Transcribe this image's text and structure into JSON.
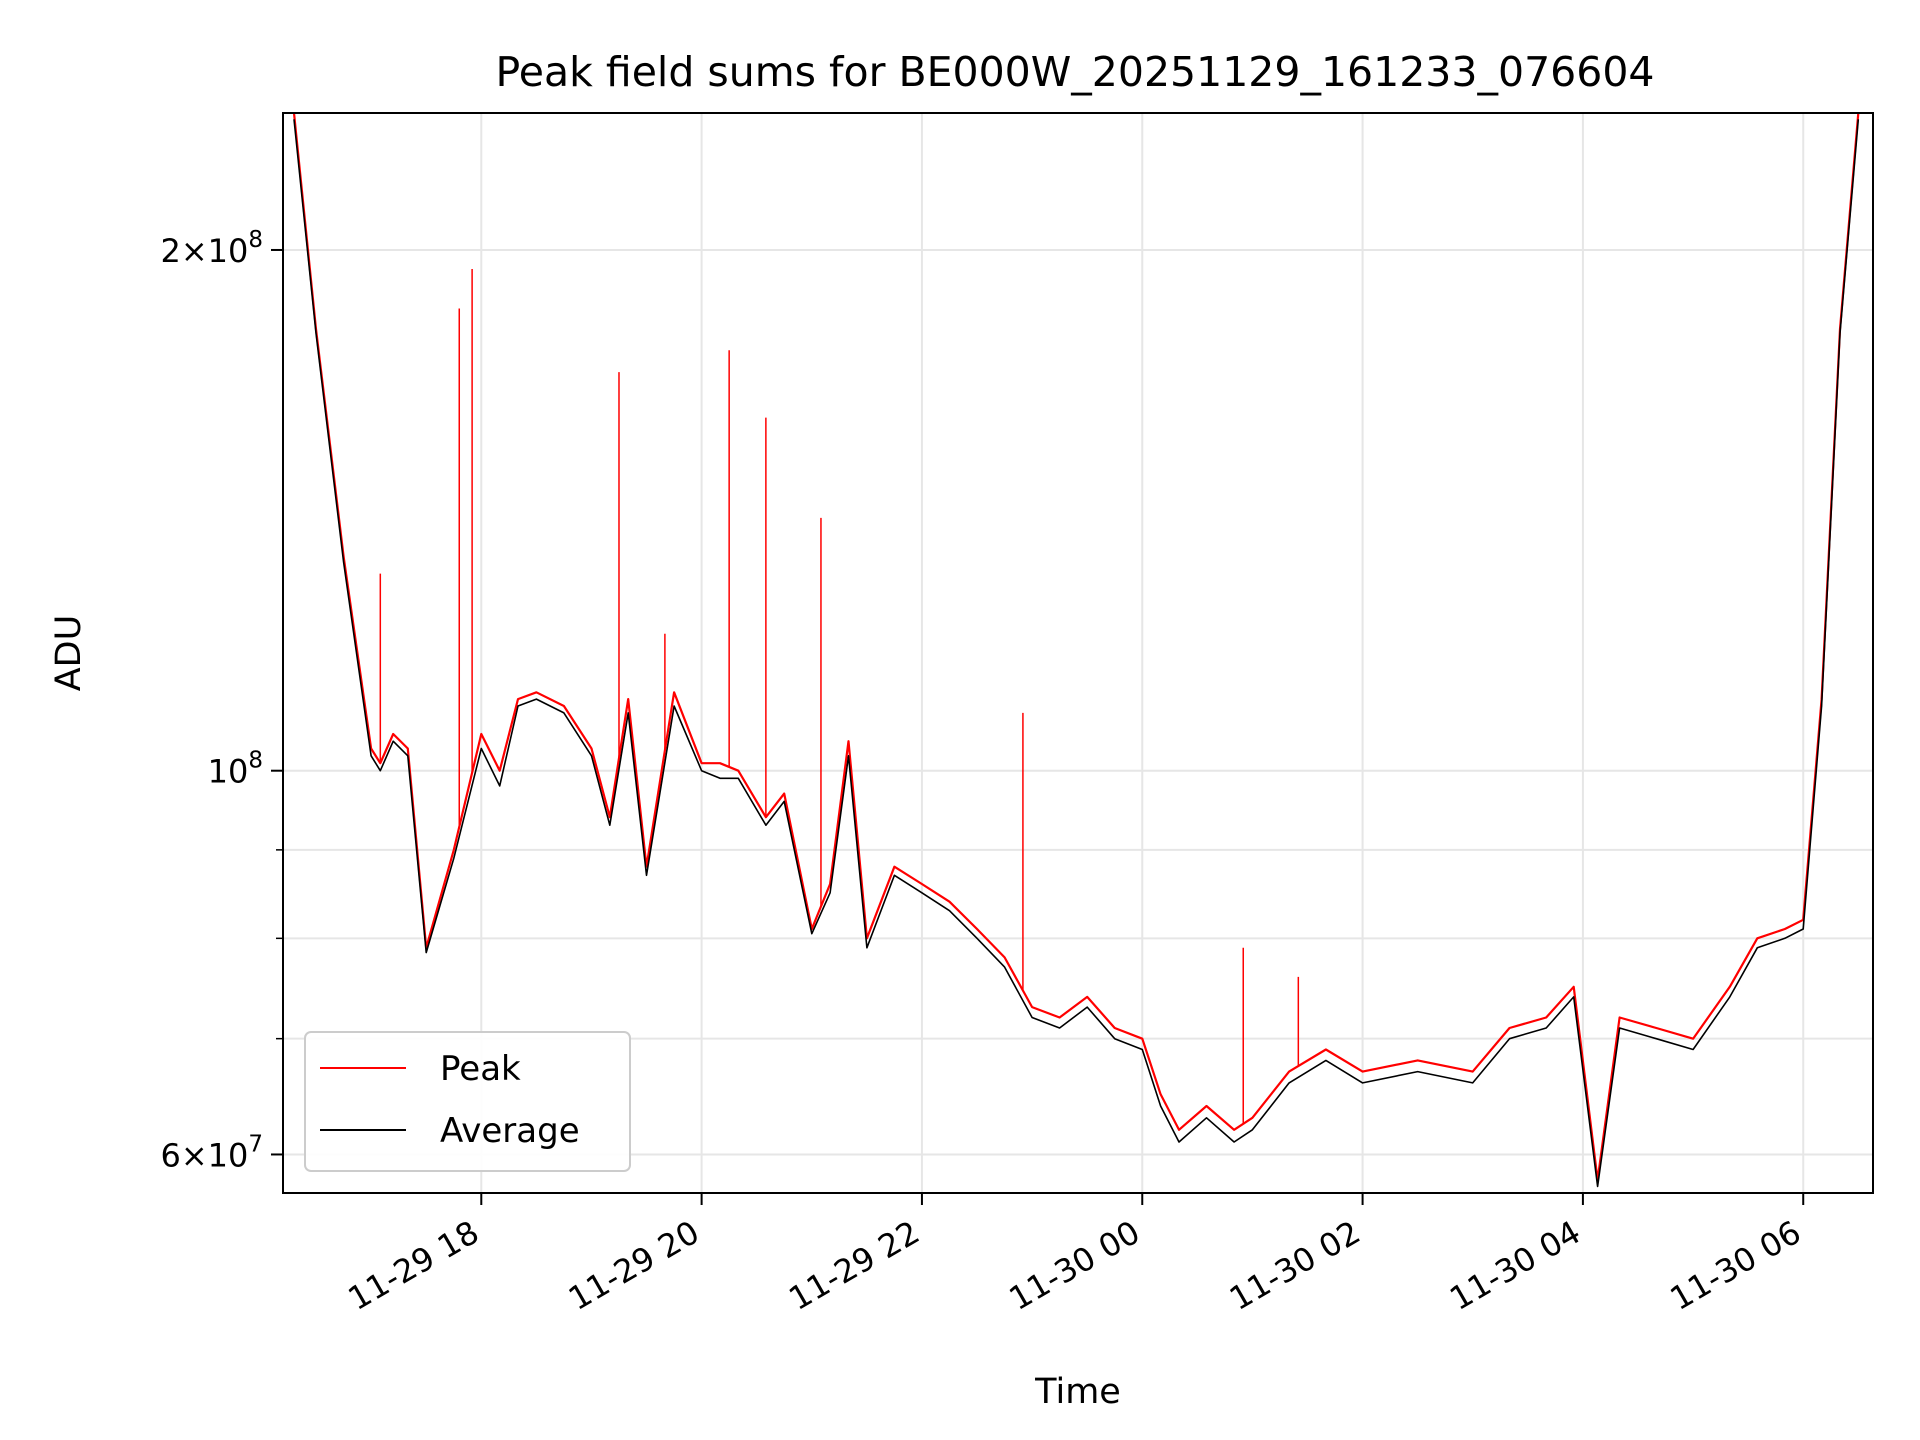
{
  "chart_data": {
    "type": "line",
    "title": "Peak field sums for BE000W_20251129_161233_076604",
    "xlabel": "Time",
    "ylabel": "ADU",
    "y_scale": "log",
    "ylim": [
      57000000,
      240000000
    ],
    "xlim": [
      "2025-11-29 16:12",
      "2025-11-30 06:38"
    ],
    "x_ticks": [
      {
        "value": "2025-11-29 18:00",
        "label": "11-29 18"
      },
      {
        "value": "2025-11-29 20:00",
        "label": "11-29 20"
      },
      {
        "value": "2025-11-29 22:00",
        "label": "11-29 22"
      },
      {
        "value": "2025-11-30 00:00",
        "label": "11-30 00"
      },
      {
        "value": "2025-11-30 02:00",
        "label": "11-30 02"
      },
      {
        "value": "2025-11-30 04:00",
        "label": "11-30 04"
      },
      {
        "value": "2025-11-30 06:00",
        "label": "11-30 06"
      }
    ],
    "y_ticks": [
      {
        "value": 60000000,
        "label_mantissa": "6",
        "label_exp": "7"
      },
      {
        "value": 100000000,
        "label_mantissa": "",
        "label_exp": "8"
      },
      {
        "value": 200000000,
        "label_mantissa": "2",
        "label_exp": "8"
      }
    ],
    "y_minor_ticks": [
      70000000,
      80000000,
      90000000
    ],
    "grid": true,
    "legend": {
      "placement": "lower-left"
    },
    "x": [
      "2025-11-29 16:18",
      "2025-11-29 16:30",
      "2025-11-29 16:45",
      "2025-11-29 17:00",
      "2025-11-29 17:05",
      "2025-11-29 17:12",
      "2025-11-29 17:20",
      "2025-11-29 17:30",
      "2025-11-29 17:45",
      "2025-11-29 18:00",
      "2025-11-29 18:10",
      "2025-11-29 18:20",
      "2025-11-29 18:30",
      "2025-11-29 18:45",
      "2025-11-29 19:00",
      "2025-11-29 19:10",
      "2025-11-29 19:20",
      "2025-11-29 19:30",
      "2025-11-29 19:45",
      "2025-11-29 20:00",
      "2025-11-29 20:10",
      "2025-11-29 20:20",
      "2025-11-29 20:35",
      "2025-11-29 20:45",
      "2025-11-29 21:00",
      "2025-11-29 21:10",
      "2025-11-29 21:20",
      "2025-11-29 21:30",
      "2025-11-29 21:45",
      "2025-11-29 22:00",
      "2025-11-29 22:15",
      "2025-11-29 22:30",
      "2025-11-29 22:45",
      "2025-11-29 23:00",
      "2025-11-29 23:15",
      "2025-11-29 23:30",
      "2025-11-29 23:45",
      "2025-11-30 00:00",
      "2025-11-30 00:10",
      "2025-11-30 00:20",
      "2025-11-30 00:35",
      "2025-11-30 00:50",
      "2025-11-30 01:00",
      "2025-11-30 01:20",
      "2025-11-30 01:40",
      "2025-11-30 02:00",
      "2025-11-30 02:30",
      "2025-11-30 03:00",
      "2025-11-30 03:20",
      "2025-11-30 03:40",
      "2025-11-30 03:55",
      "2025-11-30 04:08",
      "2025-11-30 04:20",
      "2025-11-30 04:40",
      "2025-11-30 05:00",
      "2025-11-30 05:20",
      "2025-11-30 05:35",
      "2025-11-30 05:50",
      "2025-11-30 06:00",
      "2025-11-30 06:10",
      "2025-11-30 06:20",
      "2025-11-30 06:30"
    ],
    "series": [
      {
        "name": "Peak",
        "color": "#ff0000",
        "values": [
          240000000,
          180000000,
          133000000,
          103000000,
          101000000,
          105000000,
          103000000,
          79000000,
          90000000,
          105000000,
          100000000,
          110000000,
          111000000,
          109000000,
          103000000,
          94000000,
          110000000,
          88000000,
          111000000,
          101000000,
          101000000,
          100000000,
          94000000,
          97000000,
          81000000,
          86000000,
          104000000,
          80000000,
          88000000,
          86000000,
          84000000,
          81000000,
          78000000,
          73000000,
          72000000,
          74000000,
          71000000,
          70000000,
          65000000,
          62000000,
          64000000,
          62000000,
          63000000,
          67000000,
          69000000,
          67000000,
          68000000,
          67000000,
          71000000,
          72000000,
          75000000,
          58000000,
          72000000,
          71000000,
          70000000,
          75000000,
          80000000,
          81000000,
          82000000,
          110000000,
          180000000,
          240000000
        ]
      },
      {
        "name": "Average",
        "color": "#000000",
        "values": [
          238000000,
          179000000,
          132000000,
          102000000,
          100000000,
          104000000,
          102000000,
          78500000,
          89000000,
          103000000,
          98000000,
          109000000,
          110000000,
          108000000,
          102000000,
          93000000,
          108000000,
          87000000,
          109000000,
          100000000,
          99000000,
          99000000,
          93000000,
          96000000,
          80500000,
          85000000,
          102000000,
          79000000,
          87000000,
          85000000,
          83000000,
          80000000,
          77000000,
          72000000,
          71000000,
          73000000,
          70000000,
          69000000,
          64000000,
          61000000,
          63000000,
          61000000,
          62000000,
          66000000,
          68000000,
          66000000,
          67000000,
          66000000,
          70000000,
          71000000,
          74000000,
          57500000,
          71000000,
          70000000,
          69000000,
          74000000,
          79000000,
          80000000,
          81000000,
          109000000,
          179000000,
          238000000
        ]
      }
    ],
    "spikes": {
      "x": [
        "2025-11-29 17:05",
        "2025-11-29 17:48",
        "2025-11-29 17:55",
        "2025-11-29 19:15",
        "2025-11-29 19:40",
        "2025-11-29 20:15",
        "2025-11-29 20:35",
        "2025-11-29 21:05",
        "2025-11-29 22:55",
        "2025-11-30 00:55",
        "2025-11-30 01:25"
      ],
      "values": [
        130000000,
        185000000,
        195000000,
        170000000,
        120000000,
        175000000,
        160000000,
        140000000,
        108000000,
        79000000,
        76000000
      ]
    }
  }
}
